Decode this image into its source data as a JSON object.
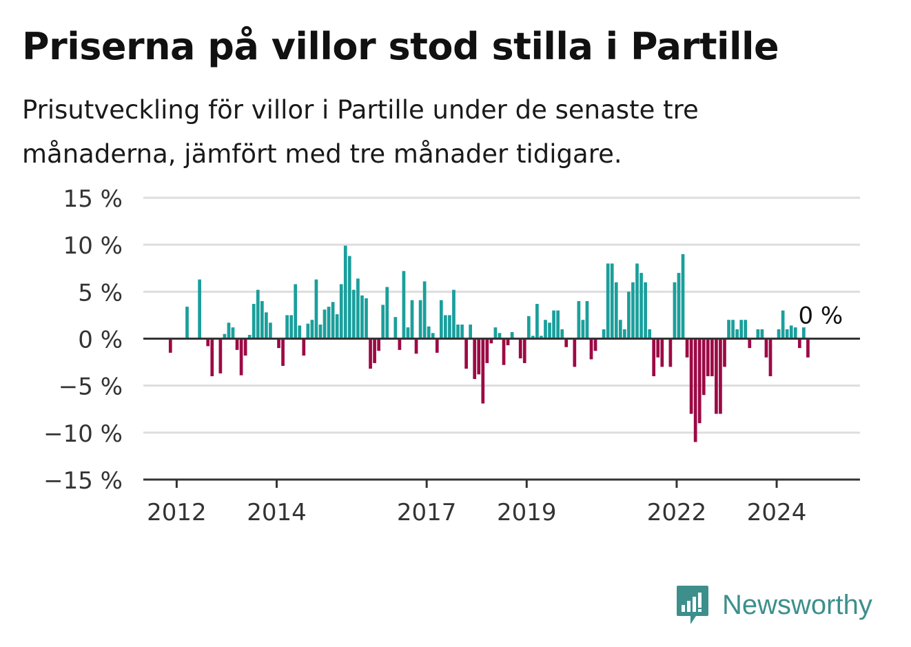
{
  "title": "Priserna på villor stod stilla i Partille",
  "subtitle": "Prisutveckling för villor i Partille under de senaste tre månaderna, jämfört med tre månader tidigare.",
  "brand": "Newsworthy",
  "colors": {
    "positive": "#1a9f9c",
    "negative": "#9c0a45",
    "grid": "#dddddd",
    "axis": "#333333",
    "brand": "#3d8f8c"
  },
  "chart_data": {
    "type": "bar",
    "title": "Priserna på villor stod stilla i Partille",
    "subtitle": "Prisutveckling för villor i Partille under de senaste tre månaderna, jämfört med tre månader tidigare.",
    "xlabel": "",
    "ylabel": "",
    "ylim": [
      -15,
      15
    ],
    "yticks": [
      15,
      10,
      5,
      0,
      -5,
      -10,
      -15
    ],
    "ytick_labels": [
      "15 %",
      "10 %",
      "5 %",
      "0 %",
      "−5 %",
      "−10 %",
      "−15 %"
    ],
    "xtick_labels": [
      {
        "label": "2012",
        "date": "2012-01"
      },
      {
        "label": "2014",
        "date": "2014-01"
      },
      {
        "label": "2017",
        "date": "2017-01"
      },
      {
        "label": "2019",
        "date": "2019-01"
      },
      {
        "label": "2022",
        "date": "2022-01"
      },
      {
        "label": "2024",
        "date": "2024-01"
      }
    ],
    "grid": true,
    "last_value_label": "0 %",
    "unit": "%",
    "x_start": "2011-05",
    "x_end": "2025-09",
    "data_start": "2011-11",
    "values": [
      -1.5,
      0,
      0,
      0,
      3.4,
      0,
      0,
      6.3,
      0,
      -0.8,
      -4,
      0,
      -3.7,
      0.5,
      1.7,
      1.2,
      -1.2,
      -3.9,
      -1.8,
      0.4,
      3.7,
      5.2,
      4,
      2.8,
      1.7,
      0,
      -1,
      -2.9,
      2.5,
      2.5,
      5.8,
      1.4,
      -1.8,
      1.6,
      2,
      6.3,
      1.5,
      3.1,
      3.4,
      3.9,
      2.6,
      5.8,
      9.9,
      8.8,
      5.2,
      6.4,
      4.6,
      4.3,
      -3.2,
      -2.6,
      -1.3,
      3.6,
      5.5,
      0,
      2.3,
      -1.2,
      7.2,
      1.2,
      4.1,
      -1.6,
      4.1,
      6.1,
      1.3,
      0.6,
      -1.5,
      4.1,
      2.5,
      2.5,
      5.2,
      1.5,
      1.5,
      -3.2,
      1.5,
      -4.3,
      -3.8,
      -6.9,
      -2.6,
      -0.5,
      1.2,
      0.6,
      -2.8,
      -0.7,
      0.7,
      0,
      -2.1,
      -2.6,
      2.4,
      0.3,
      3.7,
      0.3,
      2,
      1.7,
      3,
      3,
      1,
      -0.9,
      0,
      -3,
      4,
      2,
      4,
      -2.2,
      -1.3,
      0,
      1,
      8,
      8,
      6,
      2,
      1,
      5,
      6,
      8,
      7,
      6,
      1,
      -4,
      -2,
      -3,
      0,
      -3,
      6,
      7,
      9,
      -2,
      -8,
      -11,
      -9,
      -6,
      -4,
      -4,
      -8,
      -8,
      -3,
      2,
      2,
      1,
      2,
      2,
      -1,
      0,
      1,
      1,
      -2,
      -4,
      0,
      1,
      3,
      1,
      1.4,
      1.2,
      -1,
      1.2,
      -2,
      0
    ]
  }
}
